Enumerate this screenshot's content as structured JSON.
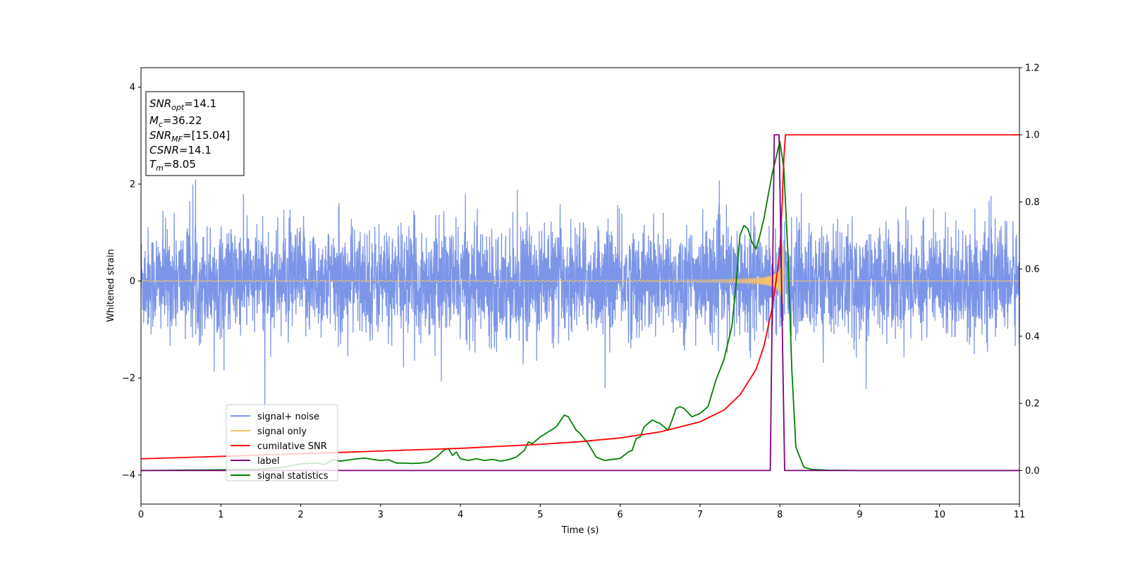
{
  "chart_data": {
    "type": "line",
    "xlabel": "Time (s)",
    "ylabel": "Whitened strain",
    "xlim": [
      0,
      11
    ],
    "ylim_left": [
      -4.6,
      4.4
    ],
    "ylim_right": [
      -0.1,
      1.2
    ],
    "x_ticks": [
      0,
      1,
      2,
      3,
      4,
      5,
      6,
      7,
      8,
      9,
      10,
      11
    ],
    "y_ticks_left": [
      -4,
      -2,
      0,
      2,
      4
    ],
    "y_ticks_left_labels": [
      "−4",
      "−2",
      "0",
      "2",
      "4"
    ],
    "y_ticks_right": [
      0.0,
      0.2,
      0.4,
      0.6,
      0.8,
      1.0,
      1.2
    ],
    "y_ticks_right_labels": [
      "0.0",
      "0.2",
      "0.4",
      "0.6",
      "0.8",
      "1.0",
      "1.2"
    ],
    "grid": false,
    "legend_position": "lower-left",
    "annotation": [
      {
        "sym": "SNR",
        "sub": "opt",
        "val": "=14.1"
      },
      {
        "sym": "M",
        "sub": "c",
        "val": "=36.22"
      },
      {
        "sym": "SNR",
        "sub": "MF",
        "val": "=[15.04]"
      },
      {
        "sym": "CSNR",
        "sub": "",
        "val": "=14.1"
      },
      {
        "sym": "T",
        "sub": "m",
        "val": "=8.05"
      }
    ],
    "series": [
      {
        "name": "signal+ noise",
        "axis": "left",
        "color": "#7b96e8",
        "noise_amplitude": 0.55,
        "note_shape": "noise"
      },
      {
        "name": "signal only",
        "axis": "left",
        "color": "#f5c26b",
        "chirp_merger_time": 8.05,
        "chirp_peak_amplitude": 0.75
      },
      {
        "name": "cumilative SNR",
        "axis": "right",
        "color": "#ff0000",
        "x": [
          0,
          1,
          2,
          3,
          4,
          5,
          5.5,
          6,
          6.5,
          7,
          7.3,
          7.5,
          7.7,
          7.8,
          7.9,
          7.95,
          8.0,
          8.03,
          8.05,
          8.07,
          11
        ],
        "y": [
          0.035,
          0.042,
          0.05,
          0.058,
          0.066,
          0.078,
          0.086,
          0.097,
          0.115,
          0.145,
          0.18,
          0.225,
          0.3,
          0.37,
          0.48,
          0.56,
          0.65,
          0.8,
          0.93,
          1.0,
          1.0
        ]
      },
      {
        "name": "label",
        "axis": "right",
        "color": "#800080",
        "x": [
          0,
          7.88,
          7.93,
          7.99,
          8.06,
          11
        ],
        "y": [
          0,
          0,
          1.0,
          1.0,
          0,
          0
        ]
      },
      {
        "name": "signal statistics",
        "axis": "right",
        "color": "#008000",
        "x": [
          0,
          0.5,
          1.0,
          1.5,
          1.8,
          2.0,
          2.2,
          2.3,
          2.4,
          2.5,
          2.7,
          2.8,
          2.9,
          3.0,
          3.1,
          3.2,
          3.3,
          3.4,
          3.5,
          3.6,
          3.7,
          3.8,
          3.85,
          3.9,
          3.95,
          4.0,
          4.1,
          4.2,
          4.3,
          4.4,
          4.5,
          4.6,
          4.7,
          4.8,
          4.85,
          4.9,
          5.0,
          5.1,
          5.2,
          5.3,
          5.35,
          5.4,
          5.45,
          5.5,
          5.6,
          5.7,
          5.8,
          5.9,
          6.0,
          6.1,
          6.15,
          6.2,
          6.25,
          6.3,
          6.4,
          6.5,
          6.55,
          6.6,
          6.65,
          6.7,
          6.75,
          6.8,
          6.9,
          7.0,
          7.1,
          7.2,
          7.3,
          7.4,
          7.45,
          7.5,
          7.55,
          7.6,
          7.65,
          7.7,
          7.75,
          7.8,
          7.9,
          8.0,
          8.05,
          8.1,
          8.15,
          8.2,
          8.3,
          8.4,
          8.6,
          9.0,
          11
        ],
        "y": [
          0,
          0.001,
          0.002,
          0.004,
          0.01,
          0.02,
          0.022,
          0.018,
          0.032,
          0.028,
          0.035,
          0.037,
          0.033,
          0.03,
          0.032,
          0.022,
          0.022,
          0.021,
          0.022,
          0.025,
          0.04,
          0.062,
          0.065,
          0.045,
          0.055,
          0.035,
          0.03,
          0.035,
          0.03,
          0.033,
          0.028,
          0.032,
          0.04,
          0.06,
          0.085,
          0.08,
          0.1,
          0.115,
          0.13,
          0.165,
          0.16,
          0.14,
          0.12,
          0.11,
          0.08,
          0.04,
          0.03,
          0.033,
          0.036,
          0.055,
          0.06,
          0.095,
          0.1,
          0.13,
          0.15,
          0.14,
          0.13,
          0.12,
          0.15,
          0.185,
          0.19,
          0.185,
          0.16,
          0.17,
          0.19,
          0.27,
          0.33,
          0.43,
          0.55,
          0.7,
          0.73,
          0.72,
          0.68,
          0.66,
          0.7,
          0.75,
          0.88,
          0.98,
          0.9,
          0.65,
          0.3,
          0.07,
          0.01,
          0.003,
          0.001,
          0,
          0
        ]
      }
    ]
  }
}
